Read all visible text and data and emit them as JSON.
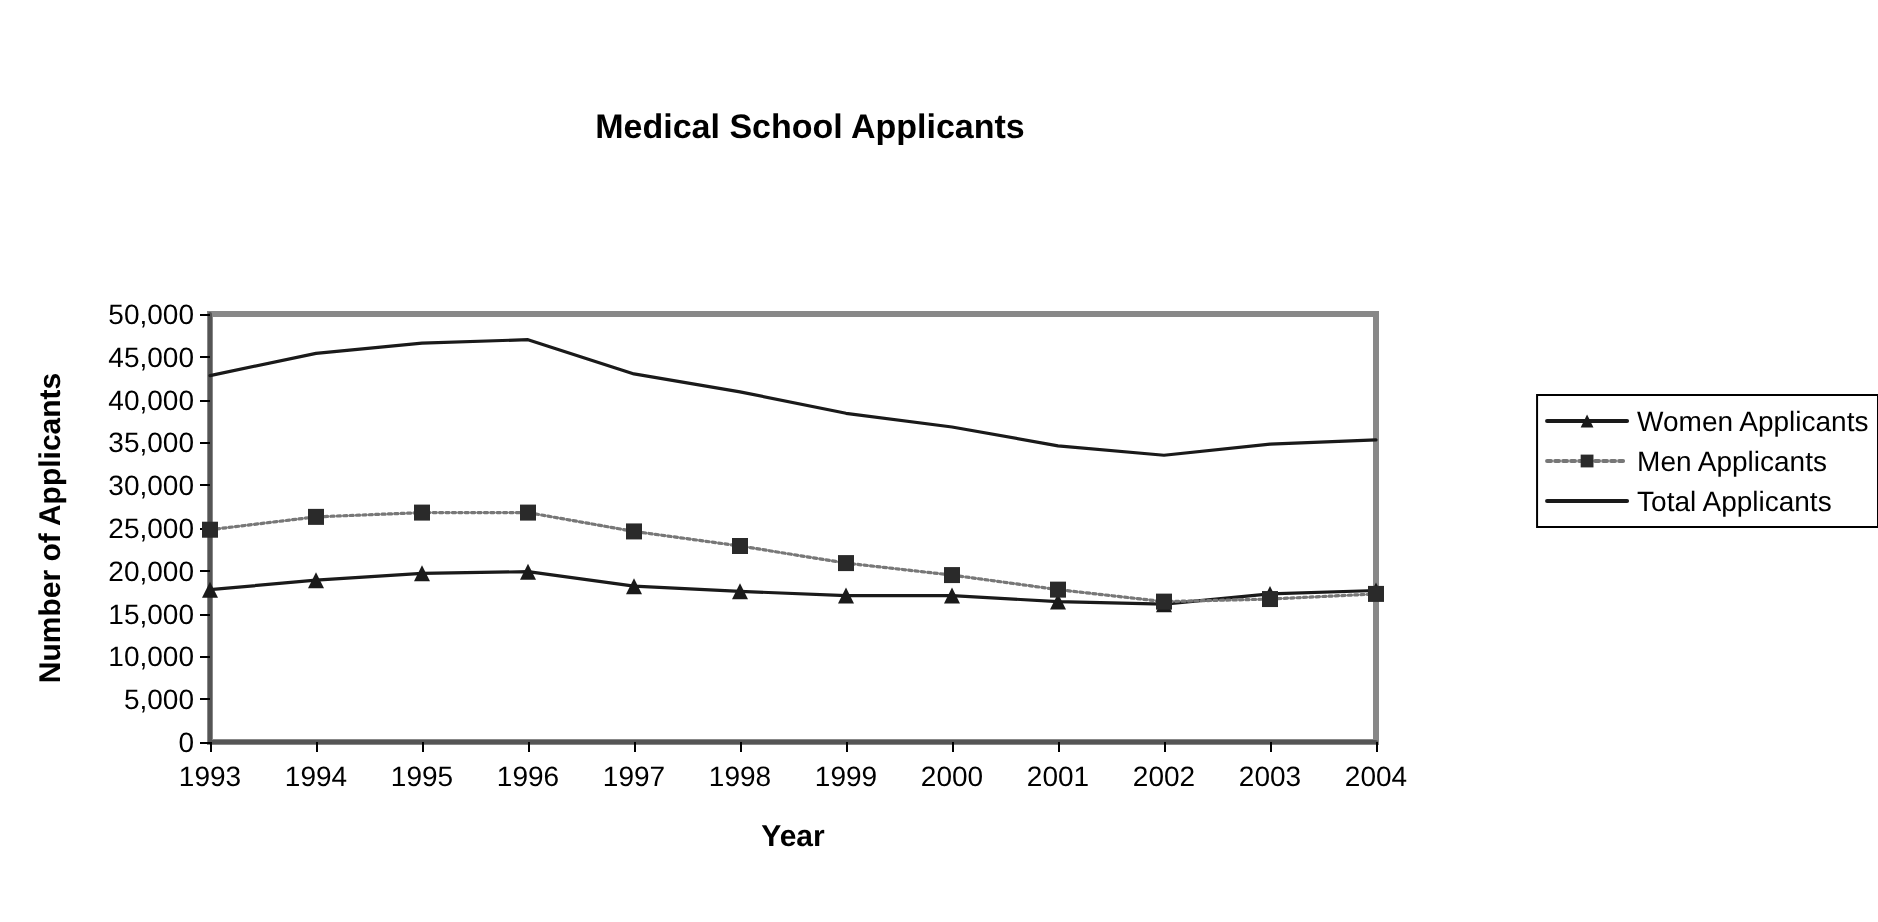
{
  "chart_data": {
    "type": "line",
    "title": "Medical School Applicants",
    "xlabel": "Year",
    "ylabel": "Number of Applicants",
    "categories": [
      "1993",
      "1994",
      "1995",
      "1996",
      "1997",
      "1998",
      "1999",
      "2000",
      "2001",
      "2002",
      "2003",
      "2004"
    ],
    "series": [
      {
        "name": "Women Applicants",
        "color": "#1a1a1a",
        "marker": "triangle",
        "line_style": "solid",
        "values": [
          17800,
          18900,
          19700,
          19900,
          18200,
          17600,
          17100,
          17100,
          16400,
          16100,
          17300,
          17700
        ]
      },
      {
        "name": "Men Applicants",
        "color": "#2a2a2a",
        "marker": "square",
        "line_style": "dotted",
        "values": [
          24800,
          26300,
          26800,
          26800,
          24600,
          22900,
          20900,
          19500,
          17800,
          16400,
          16700,
          17300
        ]
      },
      {
        "name": "Total Applicants",
        "color": "#1a1a1a",
        "marker": "none",
        "line_style": "solid",
        "values": [
          42800,
          45400,
          46600,
          47000,
          43000,
          40900,
          38400,
          36800,
          34600,
          33500,
          34800,
          35300
        ]
      }
    ],
    "ylim": [
      0,
      50000
    ],
    "yticks": [
      0,
      {
        "value": 5000,
        "label": "5,000"
      },
      {
        "value": 10000,
        "label": "10,000"
      },
      {
        "value": 15000,
        "label": "15,000"
      },
      {
        "value": 20000,
        "label": "20,000"
      },
      {
        "value": 25000,
        "label": "25,000"
      },
      {
        "value": 30000,
        "label": "30,000"
      },
      {
        "value": 35000,
        "label": "35,000"
      },
      {
        "value": 40000,
        "label": "40,000"
      },
      {
        "value": 45000,
        "label": "45,000"
      },
      {
        "value": 50000,
        "label": "50,000"
      }
    ],
    "grid": false,
    "legend": "right"
  }
}
